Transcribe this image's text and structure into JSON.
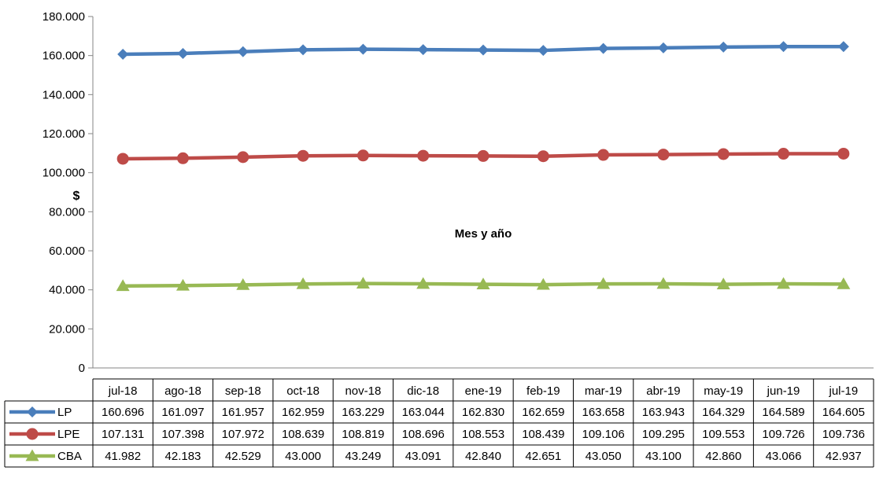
{
  "chart_data": {
    "type": "line",
    "categories": [
      "jul-18",
      "ago-18",
      "sep-18",
      "oct-18",
      "nov-18",
      "dic-18",
      "ene-19",
      "feb-19",
      "mar-19",
      "abr-19",
      "may-19",
      "jun-19",
      "jul-19"
    ],
    "ylabel": "$",
    "xlabel": "Mes y año",
    "ylim": [
      0,
      180000
    ],
    "yticks": [
      0,
      20000,
      40000,
      60000,
      80000,
      100000,
      120000,
      140000,
      160000,
      180000
    ],
    "ytick_labels": [
      "0",
      "20.000",
      "40.000",
      "60.000",
      "80.000",
      "100.000",
      "120.000",
      "140.000",
      "160.000",
      "180.000"
    ],
    "grid": false,
    "legend": "data-table-left",
    "series": [
      {
        "name": "LP",
        "color": "#4A7EBB",
        "marker": "diamond",
        "values": [
          160696,
          161097,
          161957,
          162959,
          163229,
          163044,
          162830,
          162659,
          163658,
          163943,
          164329,
          164589,
          164605
        ],
        "labels": [
          "160.696",
          "161.097",
          "161.957",
          "162.959",
          "163.229",
          "163.044",
          "162.830",
          "162.659",
          "163.658",
          "163.943",
          "164.329",
          "164.589",
          "164.605"
        ]
      },
      {
        "name": "LPE",
        "color": "#BE4B48",
        "marker": "circle",
        "values": [
          107131,
          107398,
          107972,
          108639,
          108819,
          108696,
          108553,
          108439,
          109106,
          109295,
          109553,
          109726,
          109736
        ],
        "labels": [
          "107.131",
          "107.398",
          "107.972",
          "108.639",
          "108.819",
          "108.696",
          "108.553",
          "108.439",
          "109.106",
          "109.295",
          "109.553",
          "109.726",
          "109.736"
        ]
      },
      {
        "name": "CBA",
        "color": "#98B954",
        "marker": "triangle",
        "values": [
          41982,
          42183,
          42529,
          43000,
          43249,
          43091,
          42840,
          42651,
          43050,
          43100,
          42860,
          43066,
          42937
        ],
        "labels": [
          "41.982",
          "42.183",
          "42.529",
          "43.000",
          "43.249",
          "43.091",
          "42.840",
          "42.651",
          "43.050",
          "43.100",
          "42.860",
          "43.066",
          "42.937"
        ]
      }
    ]
  }
}
